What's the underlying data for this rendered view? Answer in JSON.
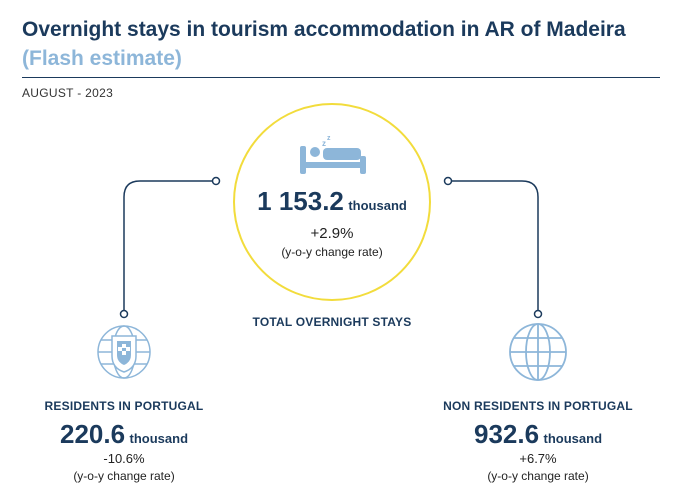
{
  "header": {
    "title": "Overnight stays in tourism accommodation in AR of Madeira",
    "subtitle": "(Flash estimate)",
    "period": "AUGUST - 2023"
  },
  "colors": {
    "dark_blue": "#1b3a5c",
    "light_blue": "#8db6d9",
    "circle_yellow": "#f2dc3c"
  },
  "chart_data": {
    "type": "infographic",
    "unit": "thousand",
    "rate_label": "(y-o-y change rate)",
    "total": {
      "label": "TOTAL OVERNIGHT STAYS",
      "value": "1 153.2",
      "unit": "thousand",
      "change": "+2.9%",
      "icon": "bed-icon"
    },
    "residents": {
      "label": "RESIDENTS IN PORTUGAL",
      "value": "220.6",
      "unit": "thousand",
      "change": "-10.6%",
      "icon": "portugal-coat-of-arms-icon"
    },
    "non_residents": {
      "label": "NON RESIDENTS IN PORTUGAL",
      "value": "932.6",
      "unit": "thousand",
      "change": "+6.7%",
      "icon": "globe-icon"
    }
  }
}
